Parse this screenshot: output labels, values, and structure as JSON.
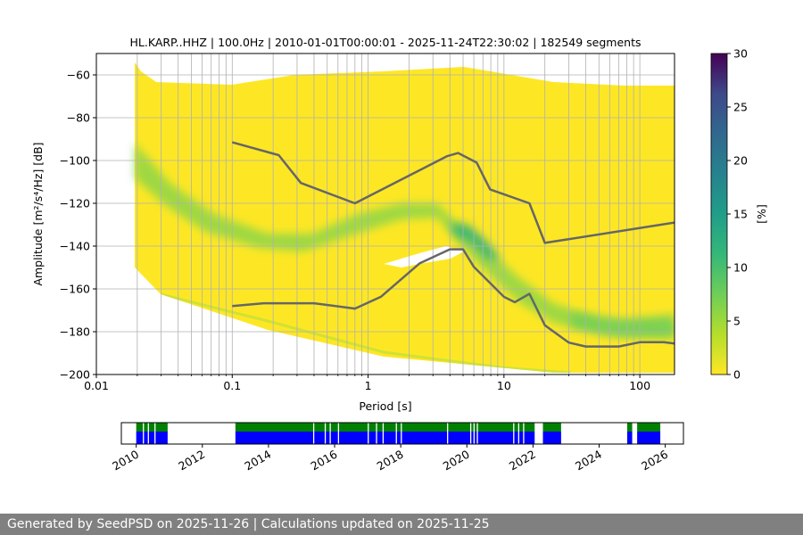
{
  "chart_data": {
    "type": "heatmap",
    "title": "HL.KARP..HHZ | 100.0Hz | 2010-01-01T00:00:01 - 2025-11-24T22:30:02 | 182549 segments",
    "xlabel": "Period [s]",
    "ylabel": "Amplitude [m²/s⁴/Hz] [dB]",
    "xscale": "log",
    "xlim": [
      0.01,
      180
    ],
    "ylim": [
      -200,
      -50
    ],
    "x_ticks": [
      "0.01",
      "0.1",
      "1",
      "10",
      "100"
    ],
    "y_ticks": [
      "−60",
      "−80",
      "−100",
      "−120",
      "−140",
      "−160",
      "−180",
      "−200"
    ],
    "grid": true,
    "colorbar": {
      "label": "[%]",
      "min": 0,
      "max": 30,
      "ticks": [
        "0",
        "5",
        "10",
        "15",
        "20",
        "25",
        "30"
      ],
      "colormap": [
        "#fde725",
        "#5ec962",
        "#21918c",
        "#3b528b",
        "#440154"
      ]
    },
    "reference_models": [
      {
        "name": "upper",
        "color": "#666666",
        "points": [
          [
            0.1,
            -91.5
          ],
          [
            0.22,
            -97.5
          ],
          [
            0.32,
            -110.5
          ],
          [
            0.8,
            -120
          ],
          [
            3.8,
            -98
          ],
          [
            4.6,
            -96.5
          ],
          [
            6.3,
            -101
          ],
          [
            7.9,
            -113.5
          ],
          [
            15.4,
            -120
          ],
          [
            20,
            -138.5
          ],
          [
            180,
            -129
          ]
        ]
      },
      {
        "name": "lower",
        "color": "#666666",
        "points": [
          [
            0.1,
            -168
          ],
          [
            0.17,
            -166.7
          ],
          [
            0.4,
            -166.7
          ],
          [
            0.8,
            -169.2
          ],
          [
            1.24,
            -163.7
          ],
          [
            2.4,
            -148
          ],
          [
            4,
            -141.5
          ],
          [
            5,
            -141.5
          ],
          [
            6,
            -149.7
          ],
          [
            10,
            -163.7
          ],
          [
            12,
            -166.2
          ],
          [
            15.4,
            -162.3
          ],
          [
            20,
            -177
          ],
          [
            30,
            -185.1
          ],
          [
            40,
            -186.9
          ],
          [
            70,
            -186.9
          ],
          [
            100,
            -184.9
          ],
          [
            150,
            -184.9
          ],
          [
            180,
            -185.5
          ]
        ]
      }
    ],
    "timeline": {
      "x_ticks": [
        "2010",
        "2012",
        "2014",
        "2016",
        "2018",
        "2020",
        "2022",
        "2024",
        "2026"
      ],
      "range": [
        2009.55,
        2026.55
      ],
      "data_segments_green": [
        [
          2010.0,
          2010.95
        ],
        [
          2013.0,
          2022.05
        ],
        [
          2022.3,
          2022.85
        ],
        [
          2024.85,
          2025.0
        ],
        [
          2025.15,
          2025.85
        ]
      ],
      "gap_markers": [
        2010.2,
        2010.35,
        2010.55,
        2015.35,
        2015.7,
        2015.85,
        2016.1,
        2017.0,
        2017.25,
        2017.45,
        2017.85,
        2018.0,
        2019.4,
        2020.1,
        2020.2,
        2020.3,
        2021.4,
        2021.55,
        2021.7
      ],
      "colors": {
        "green": "#008000",
        "blue": "#0000ff"
      }
    }
  },
  "footer": {
    "text": "Generated by SeedPSD on 2025-11-26 | Calculations updated on 2025-11-25"
  }
}
